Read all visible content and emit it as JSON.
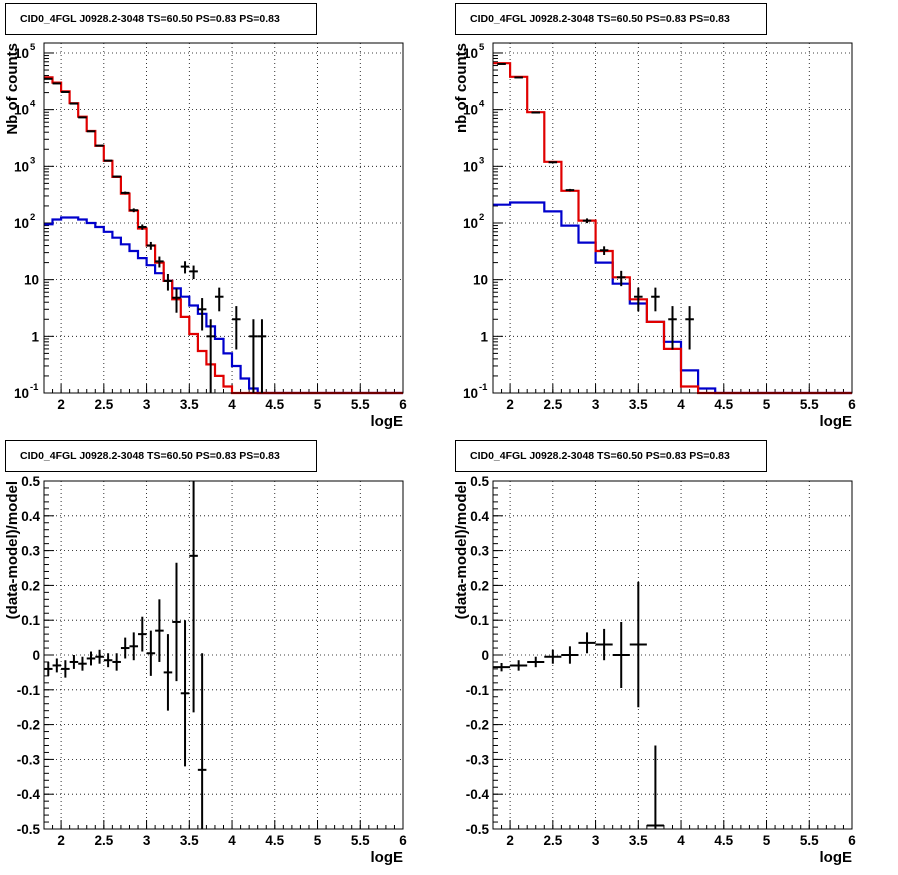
{
  "title": "CID0_4FGL J0928.2-3048 TS=60.50 PS=0.83 PS=0.83",
  "colors": {
    "data": "#000000",
    "model_total": "#e00000",
    "model_source": "#0000cc",
    "grid": "#000000"
  },
  "chart_data": [
    {
      "type": "histogram",
      "title": "CID0_4FGL J0928.2-3048 TS=60.50 PS=0.83 PS=0.83",
      "xlabel": "logE",
      "ylabel": "Nb of counts",
      "xlim": [
        1.8,
        6.0
      ],
      "ylim": [
        0.1,
        150000
      ],
      "yscale": "log",
      "grid": true,
      "xticks": [
        "2",
        "2.5",
        "3",
        "3.5",
        "4",
        "4.5",
        "5",
        "5.5",
        "6"
      ],
      "yticks": [
        "10^-1",
        "1",
        "10",
        "10^2",
        "10^3",
        "10^4",
        "10^5"
      ],
      "bin_edges": [
        1.8,
        1.9,
        2.0,
        2.1,
        2.2,
        2.3,
        2.4,
        2.5,
        2.6,
        2.7,
        2.8,
        2.9,
        3.0,
        3.1,
        3.2,
        3.3,
        3.4,
        3.5,
        3.6,
        3.7,
        3.8,
        3.9,
        4.0,
        4.1,
        4.2,
        4.3,
        4.4,
        4.5,
        4.6,
        4.7,
        4.8,
        4.9,
        5.0,
        5.1,
        5.2,
        5.3,
        5.4,
        5.5,
        5.6,
        5.7,
        5.8,
        5.9,
        6.0
      ],
      "series": [
        {
          "style": "step",
          "color": "#0000cc",
          "values": [
            95,
            115,
            125,
            125,
            115,
            100,
            85,
            70,
            55,
            42,
            32,
            24,
            18,
            13,
            9.5,
            7,
            5,
            3.5,
            2.5,
            1.5,
            0.9,
            0.5,
            0.3,
            0.18,
            0.12,
            0.1,
            0.1,
            0.1,
            0.1,
            0.1,
            0.1,
            0.1,
            0.1,
            0.1,
            0.1,
            0.1,
            0.1,
            0.1,
            0.1,
            0.1,
            0.1,
            0.1
          ]
        },
        {
          "style": "step",
          "color": "#e00000",
          "values": [
            37000,
            30000,
            21000,
            13000,
            7500,
            4200,
            2300,
            1250,
            650,
            330,
            165,
            80,
            40,
            20,
            9.5,
            4.5,
            2.2,
            1.1,
            0.55,
            0.32,
            0.2,
            0.13,
            0.1,
            0.1,
            0.1,
            0.1,
            0.1,
            0.1,
            0.1,
            0.1,
            0.1,
            0.1,
            0.1,
            0.1,
            0.1,
            0.1,
            0.1,
            0.1,
            0.1,
            0.1,
            0.1,
            0.1
          ]
        },
        {
          "style": "errorbars",
          "color": "#000000",
          "points": [
            {
              "x": 1.85,
              "y": 35000
            },
            {
              "x": 1.95,
              "y": 29000
            },
            {
              "x": 2.05,
              "y": 20500
            },
            {
              "x": 2.15,
              "y": 12800
            },
            {
              "x": 2.25,
              "y": 7300
            },
            {
              "x": 2.35,
              "y": 4150
            },
            {
              "x": 2.45,
              "y": 2320
            },
            {
              "x": 2.55,
              "y": 1260
            },
            {
              "x": 2.65,
              "y": 660
            },
            {
              "x": 2.75,
              "y": 340
            },
            {
              "x": 2.85,
              "y": 168
            },
            {
              "x": 2.95,
              "y": 85
            },
            {
              "x": 3.05,
              "y": 40
            },
            {
              "x": 3.15,
              "y": 21
            },
            {
              "x": 3.25,
              "y": 9.5
            },
            {
              "x": 3.35,
              "y": 4.8
            },
            {
              "x": 3.45,
              "y": 17
            },
            {
              "x": 3.55,
              "y": 14
            },
            {
              "x": 3.65,
              "y": 3
            },
            {
              "x": 3.75,
              "y": 1
            },
            {
              "x": 3.85,
              "y": 5
            },
            {
              "x": 4.05,
              "y": 2
            },
            {
              "x": 4.25,
              "y": 1
            },
            {
              "x": 4.35,
              "y": 1
            }
          ]
        }
      ]
    },
    {
      "type": "histogram",
      "title": "CID0_4FGL J0928.2-3048 TS=60.50 PS=0.83 PS=0.83",
      "xlabel": "logE",
      "ylabel": "nb of counts",
      "xlim": [
        1.8,
        6.0
      ],
      "ylim": [
        0.1,
        150000
      ],
      "yscale": "log",
      "grid": true,
      "xticks": [
        "2",
        "2.5",
        "3",
        "3.5",
        "4",
        "4.5",
        "5",
        "5.5",
        "6"
      ],
      "yticks": [
        "10^-1",
        "1",
        "10",
        "10^2",
        "10^3",
        "10^4",
        "10^5"
      ],
      "bin_edges": [
        1.8,
        2.0,
        2.2,
        2.4,
        2.6,
        2.8,
        3.0,
        3.2,
        3.4,
        3.6,
        3.8,
        4.0,
        4.2,
        4.4,
        4.6,
        4.8,
        5.0,
        5.2,
        5.4,
        5.6,
        5.8,
        6.0
      ],
      "series": [
        {
          "style": "step",
          "color": "#0000cc",
          "values": [
            210,
            230,
            230,
            160,
            90,
            45,
            20,
            8.5,
            3.8,
            1.8,
            0.8,
            0.25,
            0.12,
            0.1,
            0.1,
            0.1,
            0.1,
            0.1,
            0.1,
            0.1,
            0.1
          ]
        },
        {
          "style": "step",
          "color": "#e00000",
          "values": [
            66000,
            38000,
            9000,
            1200,
            370,
            110,
            32,
            11,
            4.5,
            1.8,
            0.6,
            0.13,
            0.1,
            0.1,
            0.1,
            0.1,
            0.1,
            0.1,
            0.1,
            0.1,
            0.1
          ]
        },
        {
          "style": "errorbars",
          "color": "#000000",
          "points": [
            {
              "x": 1.9,
              "y": 64000
            },
            {
              "x": 2.1,
              "y": 37000
            },
            {
              "x": 2.3,
              "y": 8900
            },
            {
              "x": 2.5,
              "y": 1180
            },
            {
              "x": 2.7,
              "y": 380
            },
            {
              "x": 2.9,
              "y": 110
            },
            {
              "x": 3.1,
              "y": 33
            },
            {
              "x": 3.3,
              "y": 11
            },
            {
              "x": 3.5,
              "y": 5
            },
            {
              "x": 3.7,
              "y": 5
            },
            {
              "x": 3.9,
              "y": 2
            },
            {
              "x": 4.1,
              "y": 2
            }
          ]
        }
      ]
    },
    {
      "type": "scatter",
      "title": "CID0_4FGL J0928.2-3048 TS=60.50 PS=0.83 PS=0.83",
      "xlabel": "logE",
      "ylabel": "(data-model)/model",
      "xlim": [
        1.8,
        6.0
      ],
      "ylim": [
        -0.5,
        0.5
      ],
      "grid": true,
      "xticks": [
        "2",
        "2.5",
        "3",
        "3.5",
        "4",
        "4.5",
        "5",
        "5.5",
        "6"
      ],
      "yticks": [
        "-0.5",
        "-0.4",
        "-0.3",
        "-0.2",
        "-0.1",
        "0",
        "0.1",
        "0.2",
        "0.3",
        "0.4",
        "0.5"
      ],
      "series": [
        {
          "style": "errorbars",
          "color": "#000000",
          "points": [
            {
              "x": 1.85,
              "y": -0.04,
              "xerr": 0.05,
              "yerr": 0.02
            },
            {
              "x": 1.95,
              "y": -0.03,
              "xerr": 0.05,
              "yerr": 0.02
            },
            {
              "x": 2.05,
              "y": -0.04,
              "xerr": 0.05,
              "yerr": 0.025
            },
            {
              "x": 2.15,
              "y": -0.02,
              "xerr": 0.05,
              "yerr": 0.02
            },
            {
              "x": 2.25,
              "y": -0.025,
              "xerr": 0.05,
              "yerr": 0.02
            },
            {
              "x": 2.35,
              "y": -0.01,
              "xerr": 0.05,
              "yerr": 0.02
            },
            {
              "x": 2.45,
              "y": -0.005,
              "xerr": 0.05,
              "yerr": 0.02
            },
            {
              "x": 2.55,
              "y": -0.015,
              "xerr": 0.05,
              "yerr": 0.02
            },
            {
              "x": 2.65,
              "y": -0.02,
              "xerr": 0.05,
              "yerr": 0.025
            },
            {
              "x": 2.75,
              "y": 0.02,
              "xerr": 0.05,
              "yerr": 0.03
            },
            {
              "x": 2.85,
              "y": 0.025,
              "xerr": 0.05,
              "yerr": 0.04
            },
            {
              "x": 2.95,
              "y": 0.06,
              "xerr": 0.05,
              "yerr": 0.05
            },
            {
              "x": 3.05,
              "y": 0.005,
              "xerr": 0.05,
              "yerr": 0.065
            },
            {
              "x": 3.15,
              "y": 0.07,
              "xerr": 0.05,
              "yerr": 0.09
            },
            {
              "x": 3.25,
              "y": -0.05,
              "xerr": 0.05,
              "yerr": 0.11
            },
            {
              "x": 3.35,
              "y": 0.095,
              "xerr": 0.05,
              "yerr": 0.17
            },
            {
              "x": 3.45,
              "y": -0.11,
              "xerr": 0.05,
              "yerr": 0.21
            },
            {
              "x": 3.55,
              "y": 0.285,
              "xerr": 0.05,
              "yerr": 0.45
            },
            {
              "x": 3.65,
              "y": -0.33,
              "xerr": 0.05,
              "yerr": 0.335
            }
          ]
        }
      ]
    },
    {
      "type": "scatter",
      "title": "CID0_4FGL J0928.2-3048 TS=60.50 PS=0.83 PS=0.83",
      "xlabel": "logE",
      "ylabel": "(data-model)/model",
      "xlim": [
        1.8,
        6.0
      ],
      "ylim": [
        -0.5,
        0.5
      ],
      "grid": true,
      "xticks": [
        "2",
        "2.5",
        "3",
        "3.5",
        "4",
        "4.5",
        "5",
        "5.5",
        "6"
      ],
      "yticks": [
        "-0.5",
        "-0.4",
        "-0.3",
        "-0.2",
        "-0.1",
        "0",
        "0.1",
        "0.2",
        "0.3",
        "0.4",
        "0.5"
      ],
      "series": [
        {
          "style": "errorbars",
          "color": "#000000",
          "points": [
            {
              "x": 1.9,
              "y": -0.035,
              "xerr": 0.1,
              "yerr": 0.012
            },
            {
              "x": 2.1,
              "y": -0.03,
              "xerr": 0.1,
              "yerr": 0.015
            },
            {
              "x": 2.3,
              "y": -0.02,
              "xerr": 0.1,
              "yerr": 0.015
            },
            {
              "x": 2.5,
              "y": -0.005,
              "xerr": 0.1,
              "yerr": 0.02
            },
            {
              "x": 2.7,
              "y": 0.0,
              "xerr": 0.1,
              "yerr": 0.025
            },
            {
              "x": 2.9,
              "y": 0.035,
              "xerr": 0.1,
              "yerr": 0.03
            },
            {
              "x": 3.1,
              "y": 0.03,
              "xerr": 0.1,
              "yerr": 0.045
            },
            {
              "x": 3.3,
              "y": 0.0,
              "xerr": 0.1,
              "yerr": 0.095
            },
            {
              "x": 3.5,
              "y": 0.03,
              "xerr": 0.1,
              "yerr": 0.18
            },
            {
              "x": 3.7,
              "y": -0.49,
              "xerr": 0.1,
              "yerr": 0.23
            }
          ]
        }
      ]
    }
  ]
}
